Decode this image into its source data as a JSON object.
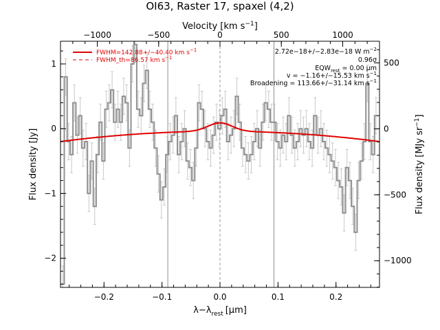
{
  "chart_data": {
    "type": "line",
    "title": "OI63, Raster 17, spaxel (4,2)",
    "xlabel": "λ−λ",
    "xlabel_sub": "rest",
    "xlabel_unit": "[μm]",
    "ylabel": "Flux density [Jy]",
    "y2label": "Flux density [MJy sr",
    "y2label_sup": "−1",
    "y2label_close": "]",
    "top_xlabel": "Velocity [km s",
    "top_xlabel_sup": "−1",
    "top_xlabel_close": "]",
    "xlim": [
      -0.275,
      0.275
    ],
    "ylim": [
      -2.45,
      1.35
    ],
    "y2lim": [
      -1202,
      664
    ],
    "top_xlim": [
      -1300,
      1300
    ],
    "x_ticks": [
      {
        "value": -0.2,
        "label": "−0.2"
      },
      {
        "value": -0.1,
        "label": "−0.1"
      },
      {
        "value": 0.0,
        "label": "0.0"
      },
      {
        "value": 0.1,
        "label": "0.1"
      },
      {
        "value": 0.2,
        "label": "0.2"
      }
    ],
    "y_ticks": [
      {
        "value": 1,
        "label": "1"
      },
      {
        "value": 0,
        "label": "0"
      },
      {
        "value": -1,
        "label": "−1"
      },
      {
        "value": -2,
        "label": "−2"
      }
    ],
    "y2_ticks": [
      {
        "value": 500,
        "label": "500"
      },
      {
        "value": 0,
        "label": "0"
      },
      {
        "value": -500,
        "label": "−500"
      },
      {
        "value": -1000,
        "label": "−1000"
      }
    ],
    "top_ticks": [
      {
        "value": -1000,
        "label": "−1000"
      },
      {
        "value": -500,
        "label": "−500"
      },
      {
        "value": 0,
        "label": "0"
      },
      {
        "value": 500,
        "label": "500"
      },
      {
        "value": 1000,
        "label": "1000"
      }
    ],
    "vertical_lines": [
      -0.09,
      0.093
    ],
    "zero_dashed_line": 0.0,
    "spectrum": {
      "name": "data",
      "color": "#909090",
      "x": [
        -0.271,
        -0.266,
        -0.261,
        -0.256,
        -0.251,
        -0.246,
        -0.241,
        -0.236,
        -0.231,
        -0.226,
        -0.221,
        -0.216,
        -0.211,
        -0.206,
        -0.201,
        -0.196,
        -0.191,
        -0.186,
        -0.181,
        -0.176,
        -0.171,
        -0.166,
        -0.161,
        -0.156,
        -0.151,
        -0.146,
        -0.141,
        -0.136,
        -0.131,
        -0.126,
        -0.121,
        -0.116,
        -0.111,
        -0.106,
        -0.101,
        -0.096,
        -0.091,
        -0.086,
        -0.081,
        -0.076,
        -0.071,
        -0.066,
        -0.061,
        -0.056,
        -0.051,
        -0.046,
        -0.041,
        -0.036,
        -0.031,
        -0.026,
        -0.021,
        -0.016,
        -0.011,
        -0.006,
        -0.001,
        0.004,
        0.009,
        0.014,
        0.019,
        0.024,
        0.029,
        0.034,
        0.039,
        0.044,
        0.049,
        0.054,
        0.059,
        0.064,
        0.069,
        0.074,
        0.079,
        0.084,
        0.089,
        0.094,
        0.099,
        0.104,
        0.109,
        0.114,
        0.119,
        0.124,
        0.129,
        0.134,
        0.139,
        0.144,
        0.149,
        0.154,
        0.159,
        0.164,
        0.169,
        0.174,
        0.179,
        0.184,
        0.189,
        0.194,
        0.199,
        0.204,
        0.209,
        0.214,
        0.219,
        0.224,
        0.229,
        0.234,
        0.239,
        0.244,
        0.249,
        0.254,
        0.259,
        0.264,
        0.269
      ],
      "y": [
        -2.4,
        0.8,
        -0.2,
        -0.4,
        0.4,
        -0.1,
        0.2,
        -0.3,
        -0.2,
        -1.0,
        -0.5,
        -1.2,
        -0.4,
        0.1,
        -0.5,
        0.3,
        0.4,
        0.6,
        0.1,
        0.3,
        0.1,
        0.5,
        0.4,
        -0.3,
        1.0,
        1.3,
        0.3,
        0.2,
        0.7,
        0.9,
        0.3,
        0.1,
        -0.3,
        -0.7,
        -1.1,
        -0.9,
        -0.4,
        -0.2,
        -0.1,
        0.2,
        -0.4,
        -0.2,
        0.0,
        -0.5,
        -0.6,
        -0.8,
        -0.3,
        0.4,
        0.3,
        0.0,
        -0.2,
        -0.3,
        -0.1,
        0.1,
        0.0,
        0.2,
        0.3,
        -0.2,
        -0.1,
        0.0,
        0.5,
        0.1,
        -0.3,
        -0.4,
        -0.5,
        -0.4,
        -0.2,
        0.0,
        -0.3,
        0.1,
        0.4,
        0.3,
        0.1,
        0.1,
        -0.2,
        -0.3,
        -0.1,
        -0.2,
        0.2,
        -0.1,
        -0.3,
        -0.2,
        0.0,
        -0.1,
        0.0,
        -0.2,
        -0.3,
        0.2,
        -0.1,
        0.0,
        -0.2,
        -0.3,
        -0.4,
        -0.5,
        -0.6,
        -0.8,
        -0.9,
        -1.3,
        -0.6,
        -0.8,
        -1.2,
        -1.6,
        -0.8,
        -0.5,
        -0.2,
        0.7,
        -0.2,
        -0.4,
        0.2
      ],
      "err": 0.28
    },
    "model": {
      "name": "fit",
      "color": "#e00000",
      "baseline": {
        "a": -0.04,
        "b": 0.0,
        "c": -2.1
      },
      "gaussian": {
        "center": 0.0,
        "amplitude": 0.13,
        "sigma": 0.021
      }
    },
    "legend": [
      {
        "label": "FWHM=142.88+/−40.40 km s",
        "sup": "−1",
        "style": "solid"
      },
      {
        "label": "FWHM_th=86.57 km s",
        "sup": "−1",
        "style": "dashed"
      }
    ],
    "annotations": [
      {
        "text": "2.72e−18+/−2.83e−18 W m",
        "sup": "−2"
      },
      {
        "text": "0.96σ"
      },
      {
        "text": "EQW",
        "sub": "rest",
        "tail": " = 0.00 μm"
      },
      {
        "text": "v = −1.16+/−15.53 km s",
        "sup": "−1"
      },
      {
        "text": "Broadening = 113.66+/−31.14 km s",
        "sup": "−1"
      }
    ],
    "grid": false,
    "legend_position": "top-left",
    "annotation_position": "top-right"
  }
}
